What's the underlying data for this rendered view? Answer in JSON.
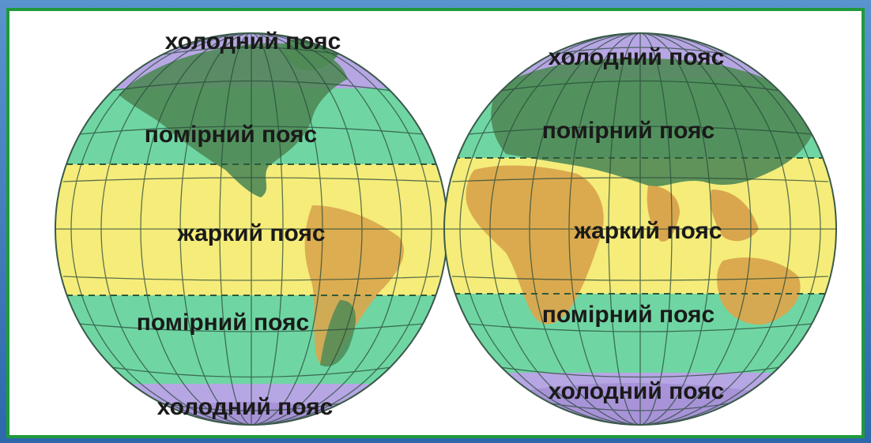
{
  "map": {
    "colors": {
      "cold": "#b7a6e4",
      "temperate": "#6fd6a3",
      "hot": "#f5ec7a",
      "land_temperate": "#4f8a57",
      "land_hot": "#d9a64d",
      "border": "#1f9a3a",
      "frame": "#2f6fb0"
    },
    "western_hemisphere": {
      "north_cold": "холодний пояс",
      "north_temperate": "помірний пояс",
      "hot": "жаркий пояс",
      "south_temperate": "помірний пояс",
      "south_cold": "холодний пояс"
    },
    "eastern_hemisphere": {
      "north_cold": "холодний пояс",
      "north_temperate": "помірний пояс",
      "hot": "жаркий пояс",
      "south_temperate": "помірний пояс",
      "south_cold": "холодний пояс"
    }
  }
}
